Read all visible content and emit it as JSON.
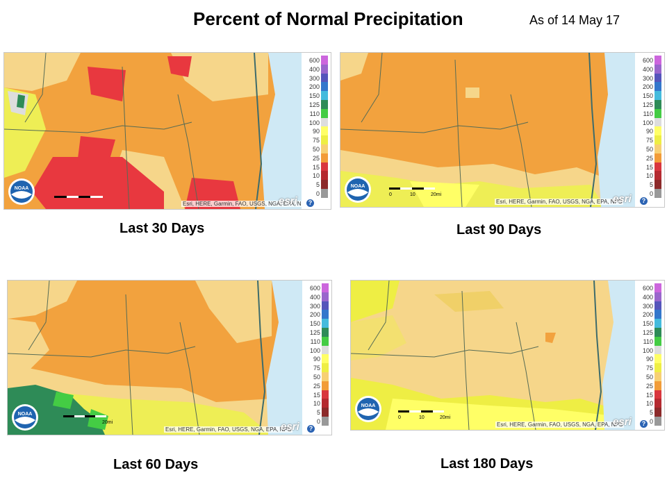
{
  "header": {
    "title": "Percent of Normal Precipitation",
    "as_of": "As of 14 May 17"
  },
  "legend_colors": {
    "600": "#cc66dd",
    "400": "#9966cc",
    "300": "#5555bb",
    "200": "#3377cc",
    "150": "#44bbdd",
    "125": "#2e8b57",
    "110": "#44cc44",
    "100": "#dddddd",
    "90": "#ffff66",
    "75": "#eeee44",
    "50": "#f7d074",
    "25": "#f29c38",
    "15": "#d9363e",
    "10": "#b52a30",
    "5": "#8c2a2a",
    "0": "#999999"
  },
  "legend_labels": [
    "600",
    "400",
    "300",
    "200",
    "150",
    "125",
    "110",
    "100",
    "90",
    "75",
    "50",
    "25",
    "15",
    "10",
    "5",
    "0"
  ],
  "attribution": "Esri, HERE, Garmin, FAO, USGS, NGA, EPA, NPS",
  "esri_logo": "esri",
  "noaa_logo": "NOAA",
  "panels": [
    {
      "id": "last-30-days",
      "caption": "Last 30 Days",
      "scale_labels": [
        "",
        "",
        ""
      ]
    },
    {
      "id": "last-90-days",
      "caption": "Last 90 Days",
      "scale_labels": [
        "0",
        "10",
        "20mi"
      ]
    },
    {
      "id": "last-60-days",
      "caption": "Last 60 Days",
      "scale_labels": [
        "",
        "",
        "20mi"
      ]
    },
    {
      "id": "last-180-days",
      "caption": "Last 180 Days",
      "scale_labels": [
        "0",
        "10",
        "20mi"
      ]
    }
  ]
}
